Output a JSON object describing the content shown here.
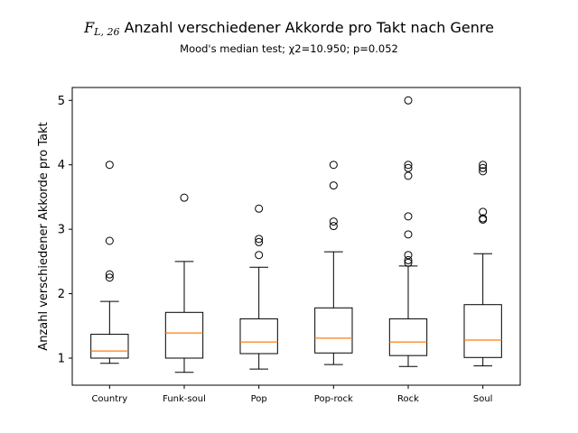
{
  "chart_data": {
    "type": "boxplot",
    "title": {
      "symbol": "F",
      "subscript": "L, 26",
      "text": "Anzahl verschiedener Akkorde pro Takt nach Genre"
    },
    "subtitle": "Mood's median test; χ2=10.950; p=0.052",
    "xlabel": "",
    "ylabel": "Anzahl verschiedener Akkorde pro Takt",
    "ylim": [
      0.58,
      5.2
    ],
    "yticks": [
      1,
      2,
      3,
      4,
      5
    ],
    "grid": false,
    "colors": {
      "box": "#000000",
      "median": "#ff7f0e",
      "flier": "#000000"
    },
    "categories": [
      "Country",
      "Funk-soul",
      "Pop",
      "Pop-rock",
      "Rock",
      "Soul"
    ],
    "boxes": [
      {
        "whislo": 0.92,
        "q1": 1.0,
        "med": 1.11,
        "q3": 1.37,
        "whishi": 1.88,
        "fliers": [
          2.25,
          2.3,
          2.82,
          4.0
        ]
      },
      {
        "whislo": 0.78,
        "q1": 1.0,
        "med": 1.39,
        "q3": 1.71,
        "whishi": 2.5,
        "fliers": [
          3.49
        ]
      },
      {
        "whislo": 0.83,
        "q1": 1.07,
        "med": 1.25,
        "q3": 1.61,
        "whishi": 2.41,
        "fliers": [
          2.6,
          2.8,
          2.85,
          3.32
        ]
      },
      {
        "whislo": 0.9,
        "q1": 1.08,
        "med": 1.31,
        "q3": 1.78,
        "whishi": 2.65,
        "fliers": [
          3.05,
          3.12,
          3.68,
          4.0
        ]
      },
      {
        "whislo": 0.87,
        "q1": 1.04,
        "med": 1.25,
        "q3": 1.61,
        "whishi": 2.43,
        "fliers": [
          2.48,
          2.52,
          2.6,
          2.92,
          3.2,
          3.83,
          3.95,
          4.0,
          5.0
        ]
      },
      {
        "whislo": 0.88,
        "q1": 1.01,
        "med": 1.28,
        "q3": 1.83,
        "whishi": 2.62,
        "fliers": [
          3.15,
          3.17,
          3.27,
          3.9,
          3.95,
          4.0
        ]
      }
    ]
  }
}
